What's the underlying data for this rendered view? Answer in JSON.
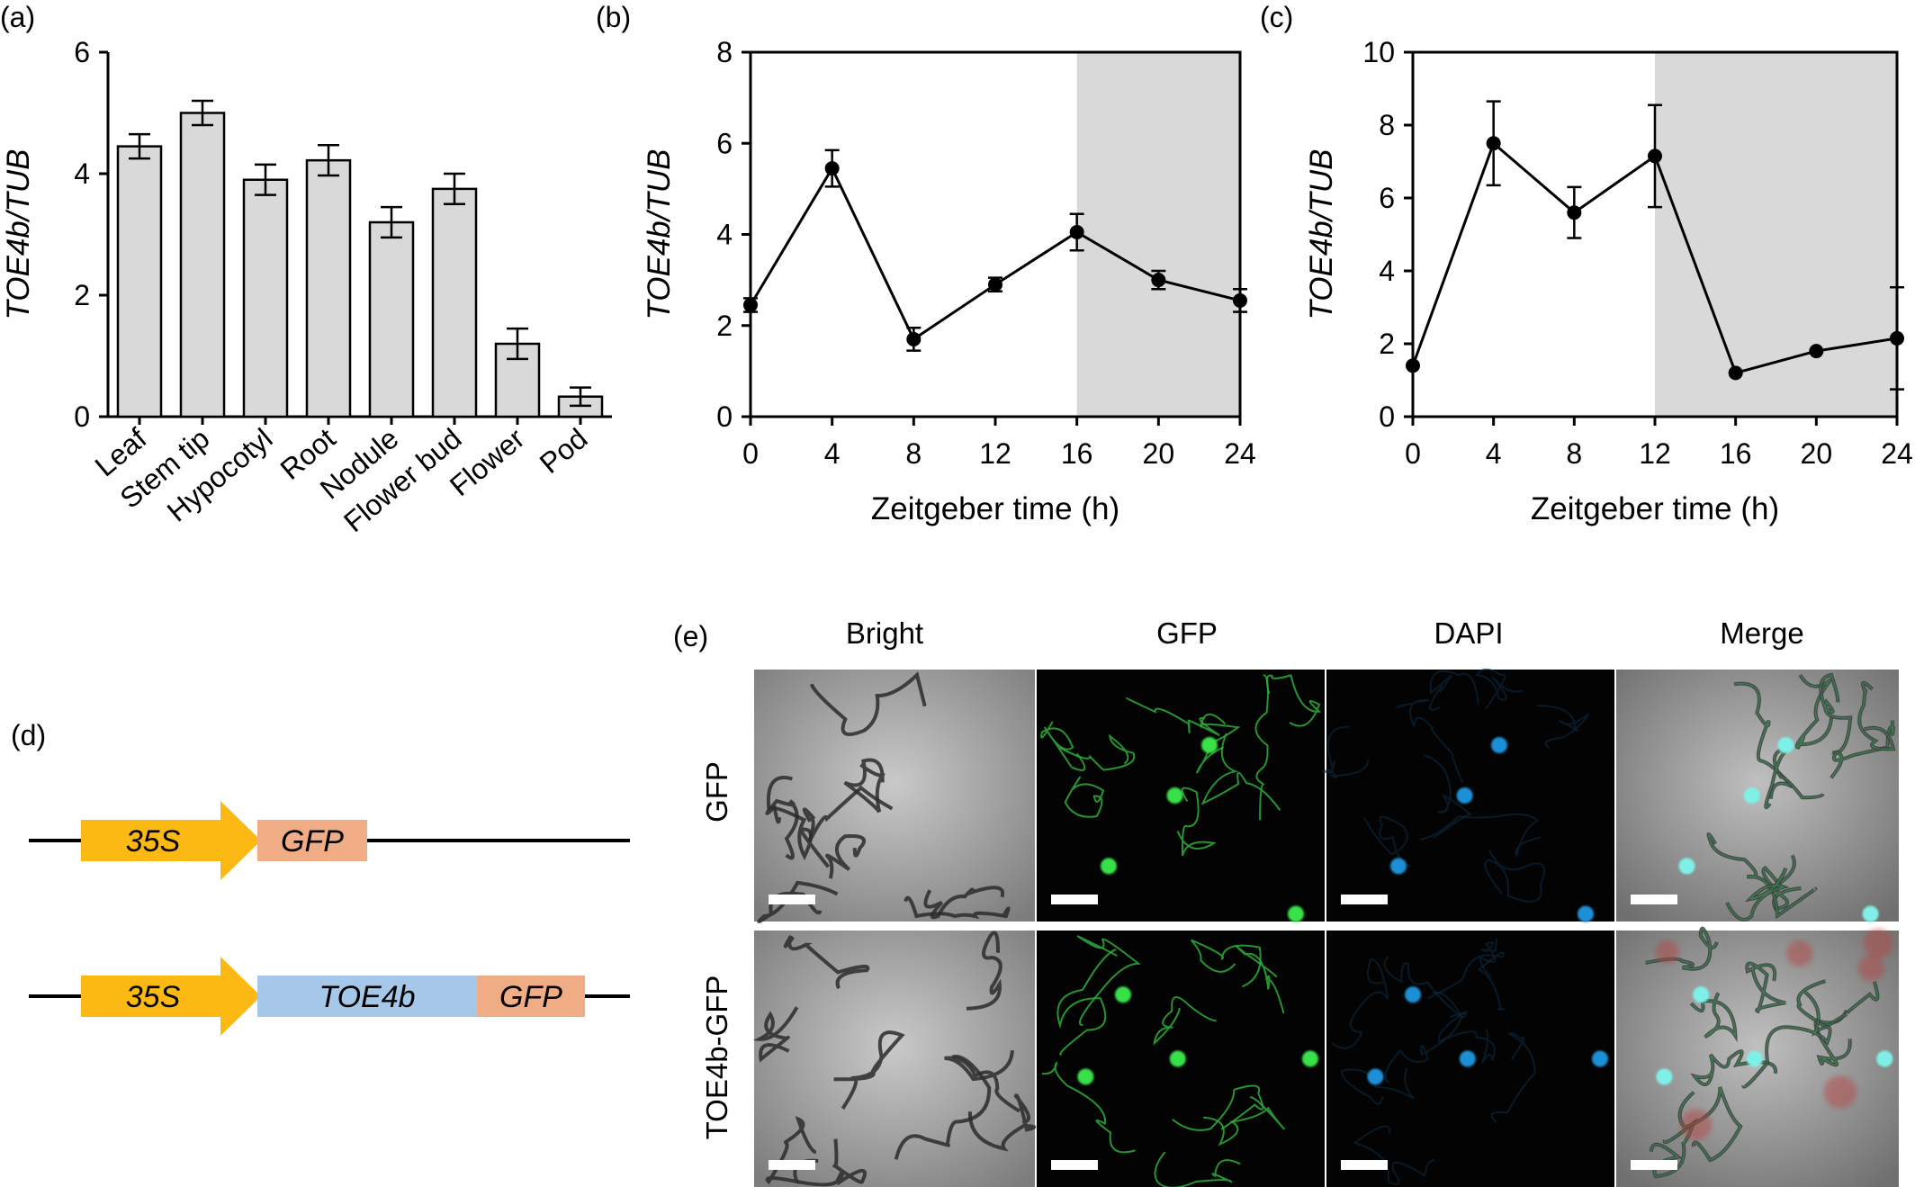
{
  "panels": {
    "a": "(a)",
    "b": "(b)",
    "c": "(c)",
    "d": "(d)",
    "e": "(e)"
  },
  "chart_data": [
    {
      "id": "a",
      "type": "bar",
      "ylabel": "TOE4b/TUB",
      "xlabel": "",
      "ylim": [
        0,
        6
      ],
      "yticks": [
        "0",
        "2",
        "4",
        "6"
      ],
      "categories": [
        "Leaf",
        "Stem tip",
        "Hypocotyl",
        "Root",
        "Nodule",
        "Flower bud",
        "Flower",
        "Pod"
      ],
      "values": [
        4.45,
        5.0,
        3.9,
        4.22,
        3.2,
        3.75,
        1.2,
        0.33
      ],
      "errors": [
        0.2,
        0.2,
        0.25,
        0.25,
        0.25,
        0.25,
        0.25,
        0.15
      ],
      "bar_color": "#d9d9d9"
    },
    {
      "id": "b",
      "type": "line",
      "ylabel": "TOE4b/TUB",
      "xlabel": "Zeitgeber time (h)",
      "ylim": [
        0,
        8
      ],
      "xlim": [
        0,
        24
      ],
      "yticks": [
        "0",
        "2",
        "4",
        "6",
        "8"
      ],
      "xticks": [
        "0",
        "4",
        "8",
        "12",
        "16",
        "20",
        "24"
      ],
      "x": [
        0,
        4,
        8,
        12,
        16,
        20,
        24
      ],
      "y": [
        2.45,
        5.45,
        1.7,
        2.9,
        4.05,
        3.0,
        2.55
      ],
      "errors": [
        0.15,
        0.4,
        0.25,
        0.15,
        0.4,
        0.2,
        0.25
      ],
      "dark_start": 16,
      "shade_color": "#d9d9d9"
    },
    {
      "id": "c",
      "type": "line",
      "ylabel": "TOE4b/TUB",
      "xlabel": "Zeitgeber time (h)",
      "ylim": [
        0,
        10
      ],
      "xlim": [
        0,
        24
      ],
      "yticks": [
        "0",
        "2",
        "4",
        "6",
        "8",
        "10"
      ],
      "xticks": [
        "0",
        "4",
        "8",
        "12",
        "16",
        "20",
        "24"
      ],
      "x": [
        0,
        4,
        8,
        12,
        16,
        20,
        24
      ],
      "y": [
        1.4,
        7.5,
        5.6,
        7.15,
        1.2,
        1.8,
        2.15
      ],
      "errors": [
        0.0,
        1.15,
        0.7,
        1.4,
        0.0,
        0.0,
        1.4
      ],
      "dark_start": 12,
      "shade_color": "#d9d9d9"
    }
  ],
  "constructs": [
    {
      "name": "GFP construct",
      "parts": [
        {
          "label": "35S",
          "type": "promoter",
          "color": "#fcb813"
        },
        {
          "label": "GFP",
          "type": "gene",
          "color": "#f0ac84"
        }
      ]
    },
    {
      "name": "TOE4b-GFP construct",
      "parts": [
        {
          "label": "35S",
          "type": "promoter",
          "color": "#fcb813"
        },
        {
          "label": "TOE4b",
          "type": "gene",
          "color": "#a6c8e8"
        },
        {
          "label": "GFP",
          "type": "gene",
          "color": "#f0ac84"
        }
      ]
    }
  ],
  "micrographs": {
    "columns": [
      "Bright",
      "GFP",
      "DAPI",
      "Merge"
    ],
    "rows": [
      "GFP",
      "TOE4b-GFP"
    ]
  }
}
